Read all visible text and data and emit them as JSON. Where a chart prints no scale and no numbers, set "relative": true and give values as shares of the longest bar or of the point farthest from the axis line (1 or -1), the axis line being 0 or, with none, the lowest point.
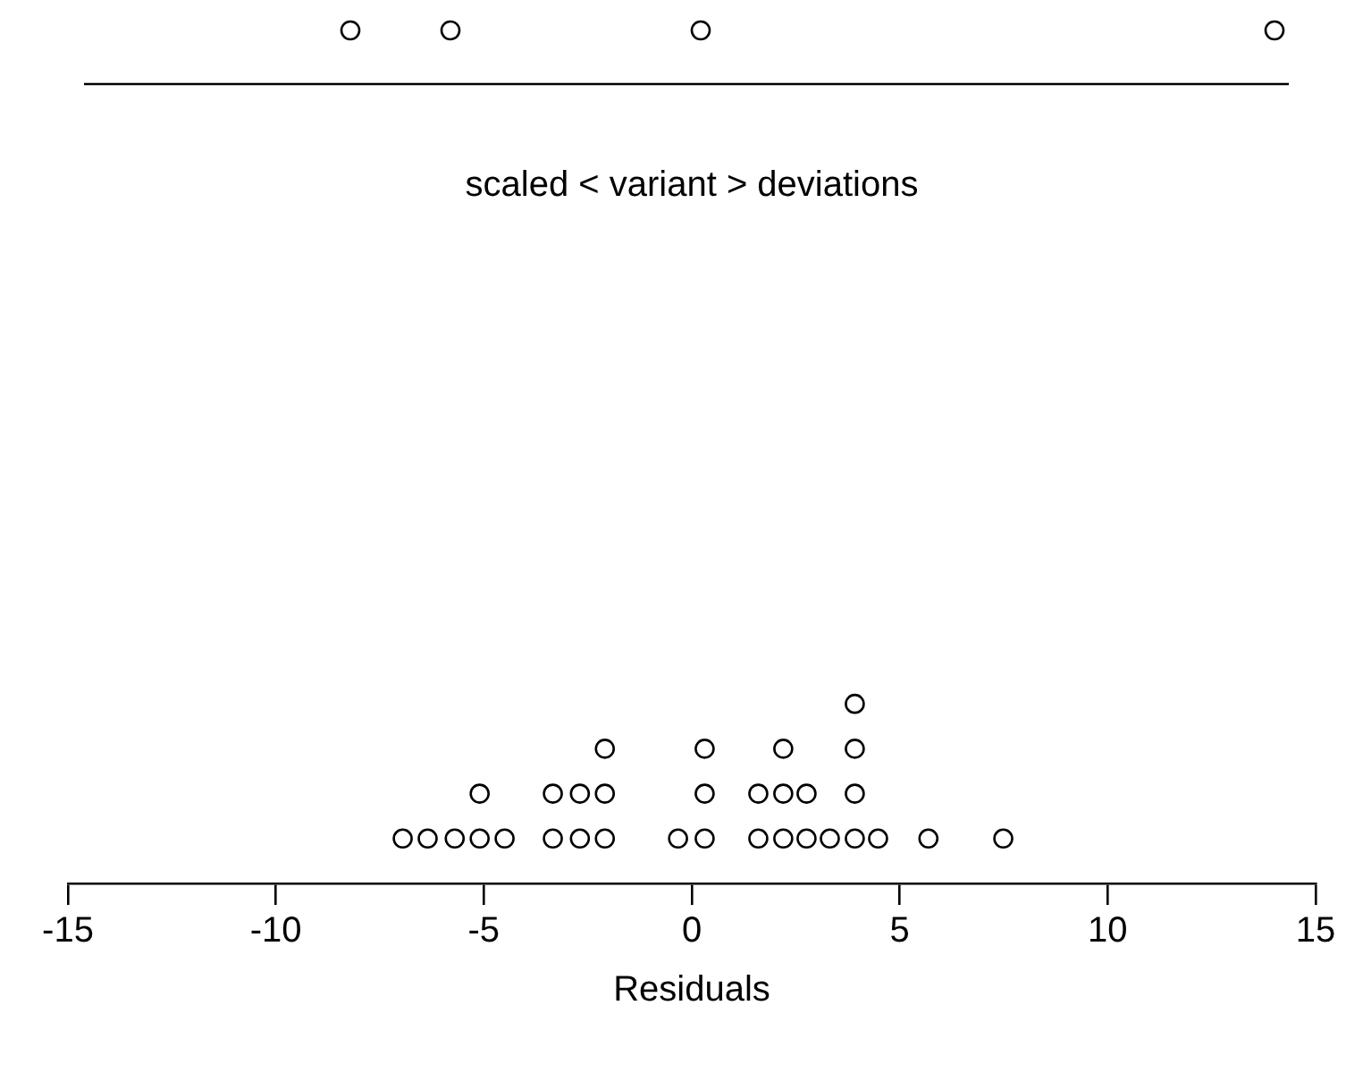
{
  "chart_data": {
    "type": "scatter",
    "title": "scaled < variant > deviations",
    "xlabel": "Residuals",
    "relative": true,
    "marker": "circle",
    "grid": false,
    "legend": false,
    "tick_labels": "x",
    "xlim": [
      -15,
      15
    ],
    "xticks": [
      -15,
      -10,
      -5,
      0,
      5,
      10,
      15
    ],
    "color": "#000000",
    "x": [
      -6.95,
      -6.35,
      -5.7,
      -5.1,
      -4.5,
      -3.34,
      -2.69,
      -2.09,
      -0.33,
      0.31,
      1.6,
      2.2,
      2.76,
      3.32,
      3.92,
      4.48,
      5.69,
      7.49,
      -5.1,
      -3.34,
      -2.69,
      -2.09,
      0.31,
      1.6,
      2.2,
      2.76,
      3.92,
      -2.09,
      0.31,
      2.2,
      3.92,
      3.92
    ],
    "values": [
      0.25,
      0.25,
      0.25,
      0.25,
      0.25,
      0.25,
      0.25,
      0.25,
      0.25,
      0.25,
      0.25,
      0.25,
      0.25,
      0.25,
      0.25,
      0.25,
      0.25,
      0.25,
      0.5,
      0.5,
      0.5,
      0.5,
      0.5,
      0.5,
      0.5,
      0.5,
      0.5,
      0.75,
      0.75,
      0.75,
      0.75,
      1
    ]
  }
}
